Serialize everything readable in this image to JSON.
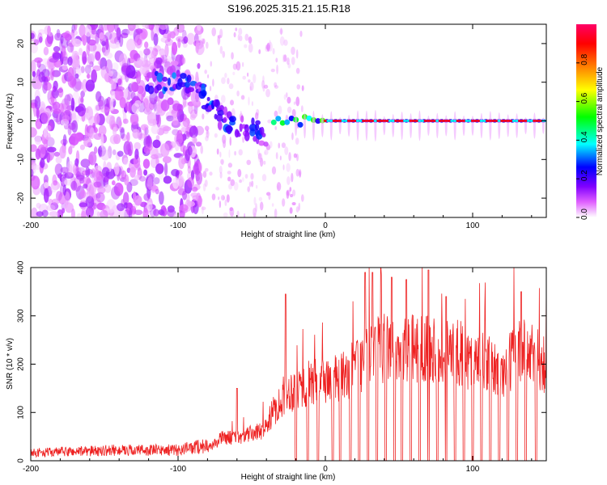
{
  "title": "S196.2025.315.21.15.R18",
  "chart_data": [
    {
      "type": "heatmap",
      "xlabel": "Height of straight line (km)",
      "ylabel": "Frequency (Hz)",
      "xlim": [
        -200,
        150
      ],
      "ylim": [
        -25,
        25
      ],
      "xticks": [
        -200,
        -100,
        0,
        100
      ],
      "yticks": [
        20,
        10,
        0,
        -10,
        -20
      ],
      "colorbar": {
        "label": "Normalized spectral amplitude",
        "range": [
          0,
          1
        ],
        "ticks": [
          0.0,
          0.2,
          0.4,
          0.6,
          0.8
        ],
        "colors": [
          "#ffffff",
          "#e060ff",
          "#8000ff",
          "#0000ff",
          "#00ffff",
          "#00ff00",
          "#ffff00",
          "#ff8000",
          "#ff0000",
          "#ff0066"
        ]
      },
      "features": [
        {
          "name": "diffuse noise",
          "x_range": [
            -200,
            -85
          ],
          "freq_range": [
            -25,
            25
          ],
          "amplitude": 0.05
        },
        {
          "name": "descending trace",
          "points": [
            [
              -120,
              10
            ],
            [
              -100,
              10
            ],
            [
              -85,
              8
            ],
            [
              -75,
              3
            ],
            [
              -65,
              -1
            ],
            [
              -50,
              -2
            ],
            [
              -40,
              -4
            ]
          ],
          "amplitude": 0.2
        },
        {
          "name": "stable line",
          "x_range": [
            -35,
            150
          ],
          "frequency": 0,
          "amplitude": 0.9
        }
      ]
    },
    {
      "type": "line",
      "xlabel": "Height of straight line (km)",
      "ylabel": "SNR (10 * v/v)",
      "xlim": [
        -200,
        150
      ],
      "ylim": [
        0,
        400
      ],
      "xticks": [
        -200,
        -100,
        0,
        100
      ],
      "yticks": [
        0,
        100,
        200,
        300,
        400
      ],
      "color": "#ee2222",
      "envelope": {
        "x": [
          -200,
          -140,
          -100,
          -80,
          -70,
          -60,
          -50,
          -45,
          -40,
          -35,
          -28,
          -20,
          -10,
          0,
          10,
          20,
          30,
          40,
          50,
          60,
          70,
          80,
          90,
          100,
          110,
          120,
          130,
          140,
          150
        ],
        "y": [
          15,
          20,
          20,
          30,
          60,
          60,
          70,
          75,
          90,
          130,
          170,
          190,
          200,
          210,
          210,
          240,
          280,
          290,
          290,
          290,
          300,
          280,
          280,
          260,
          250,
          220,
          290,
          270,
          250
        ]
      },
      "spikes": [
        {
          "x": -60,
          "y": 150
        },
        {
          "x": -27,
          "y": 345
        },
        {
          "x": 27,
          "y": 390
        },
        {
          "x": 32,
          "y": 390
        },
        {
          "x": 45,
          "y": 380
        },
        {
          "x": 55,
          "y": 375
        },
        {
          "x": 70,
          "y": 395
        },
        {
          "x": 82,
          "y": 340
        },
        {
          "x": 133,
          "y": 350
        }
      ],
      "dropouts": [
        -20,
        -12,
        -5,
        5,
        10,
        17,
        23,
        29,
        35,
        41,
        47,
        52,
        58,
        64,
        70,
        76,
        82,
        88,
        94,
        100,
        106,
        112,
        118,
        124,
        130,
        136,
        143
      ]
    }
  ]
}
